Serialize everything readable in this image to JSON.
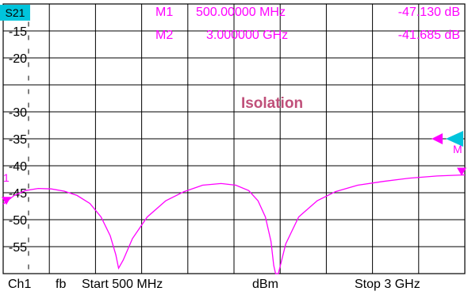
{
  "trace_label": "S21",
  "colors": {
    "trace": "#ff00ff",
    "badge": "#00c4dc",
    "title": "#c0507a",
    "grid": "#000000"
  },
  "markers": [
    {
      "name": "M1",
      "freq": "500.00000 MHz",
      "value": "-47.130 dB"
    },
    {
      "name": "M2",
      "freq": "3.000000 GHz",
      "value": "-41.685 dB"
    }
  ],
  "marker_flag_left": "1",
  "marker_flag_right": "M",
  "footer": {
    "channel": "Ch1",
    "fb": "fb",
    "start": "Start  500 MHz",
    "unit": "dBm",
    "stop": "Stop  3 GHz"
  },
  "chart_data": {
    "type": "line",
    "title": "Isolation",
    "ylim": [
      -60,
      -10
    ],
    "y_ticks": [
      "-15",
      "-20",
      "-30",
      "-35",
      "-40",
      "-45",
      "-50",
      "-55"
    ],
    "xlim": [
      500,
      3000
    ],
    "x_unit": "MHz",
    "grid": true,
    "reference_level": -35,
    "series": [
      {
        "values_x": [
          500,
          560,
          620,
          690,
          760,
          830,
          900,
          970,
          1030,
          1080,
          1110,
          1125,
          1150,
          1200,
          1280,
          1380,
          1480,
          1580,
          1680,
          1760,
          1830,
          1880,
          1920,
          1950,
          1965,
          1975,
          1990,
          2030,
          2100,
          2200,
          2300,
          2420,
          2560,
          2700,
          2850,
          3000
        ],
        "values_y": [
          -47.1,
          -45.5,
          -44.6,
          -44.2,
          -44.3,
          -44.7,
          -45.5,
          -47.0,
          -49.5,
          -53.0,
          -56.5,
          -59.0,
          -57.5,
          -53.5,
          -49.5,
          -46.5,
          -44.8,
          -43.6,
          -43.3,
          -43.6,
          -44.6,
          -46.5,
          -49.5,
          -54.0,
          -58.5,
          -62.0,
          -60.0,
          -54.5,
          -49.5,
          -46.5,
          -44.8,
          -43.6,
          -42.9,
          -42.3,
          -41.9,
          -41.685
        ]
      }
    ]
  }
}
